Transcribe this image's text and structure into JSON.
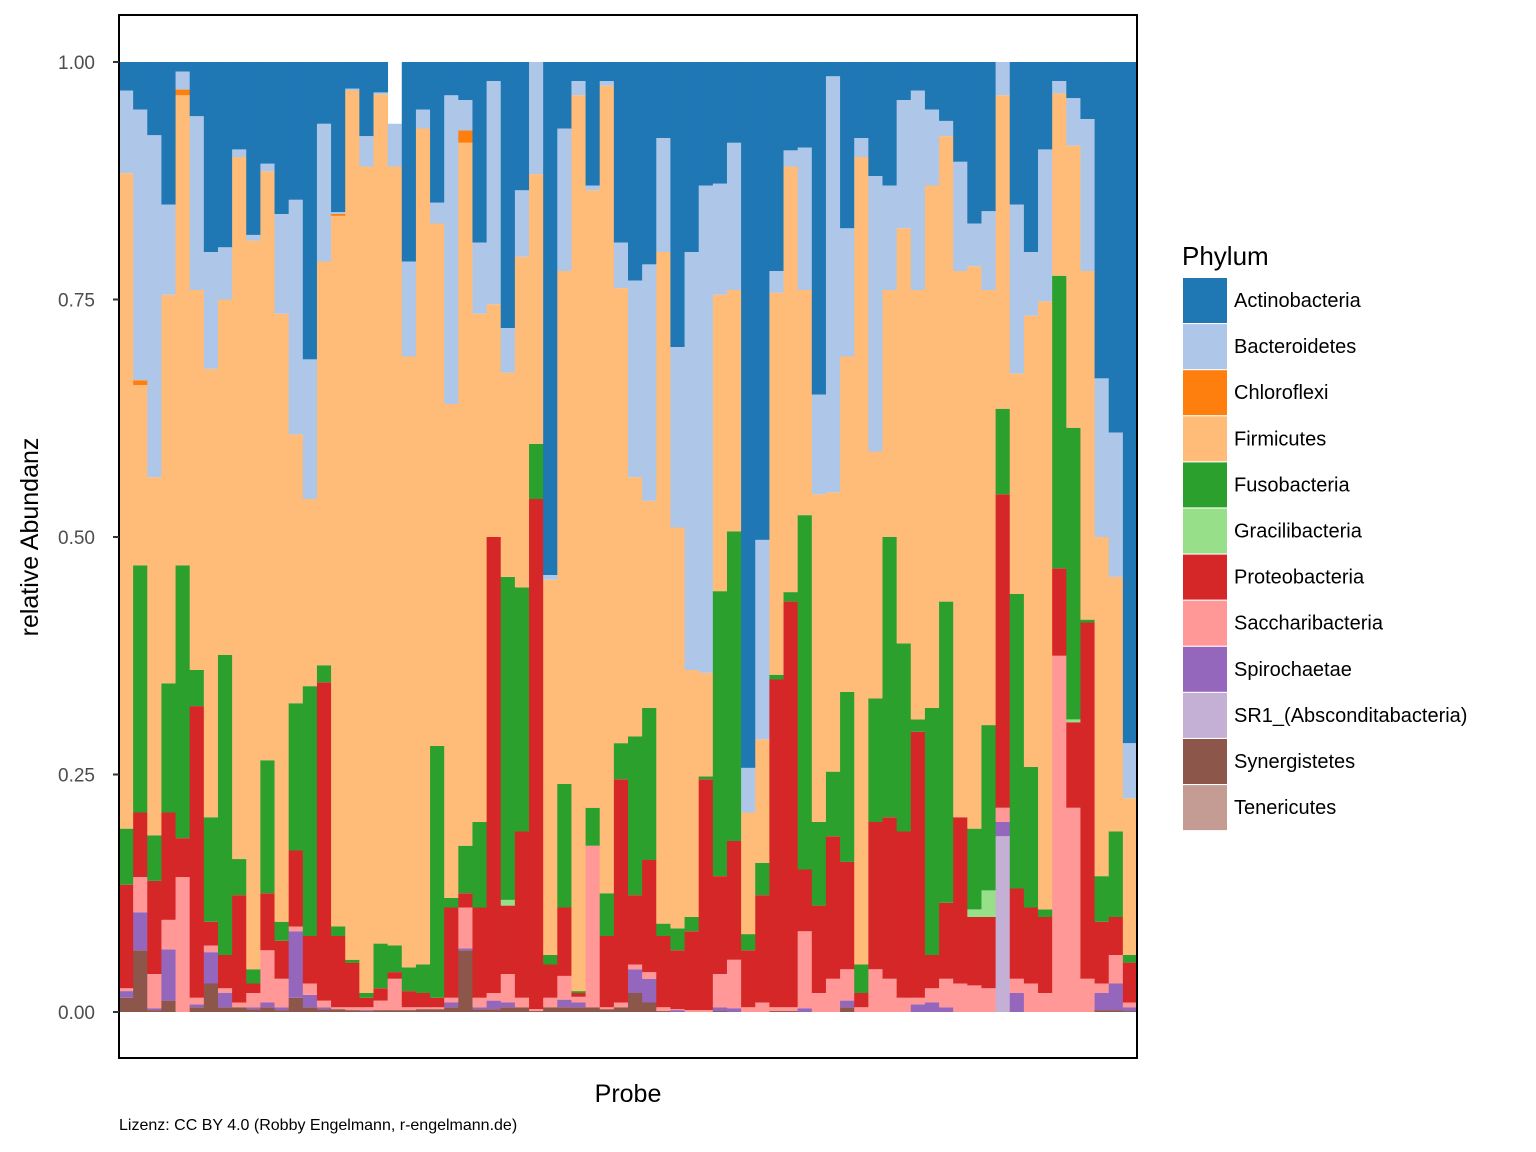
{
  "chart_data": {
    "type": "bar",
    "stacked": true,
    "normalized": true,
    "xlabel": "Probe",
    "ylabel": "relative Abundanz",
    "ylim": [
      -0.05,
      1.05
    ],
    "yticks": [
      0,
      0.25,
      0.5,
      0.75,
      1
    ],
    "ytick_labels": [
      "0.00",
      "0.25",
      "0.50",
      "0.75",
      "1.00"
    ],
    "legend": {
      "title": "Phylum",
      "placement": "right",
      "entries": [
        {
          "key": "Ac",
          "name": "Actinobacteria",
          "color": "#1f77b4"
        },
        {
          "key": "Ba",
          "name": "Bacteroidetes",
          "color": "#aec7e8"
        },
        {
          "key": "Ch",
          "name": "Chloroflexi",
          "color": "#ff7f0e"
        },
        {
          "key": "Fi",
          "name": "Firmicutes",
          "color": "#ffbb78"
        },
        {
          "key": "Fu",
          "name": "Fusobacteria",
          "color": "#2ca02c"
        },
        {
          "key": "Gr",
          "name": "Gracilibacteria",
          "color": "#98df8a"
        },
        {
          "key": "Pr",
          "name": "Proteobacteria",
          "color": "#d62728"
        },
        {
          "key": "Sa",
          "name": "Saccharibacteria",
          "color": "#ff9896"
        },
        {
          "key": "Sp",
          "name": "Spirochaetae",
          "color": "#9467bd"
        },
        {
          "key": "SR",
          "name": "SR1_(Absconditabacteria)",
          "color": "#c5b0d5"
        },
        {
          "key": "Sy",
          "name": "Synergistetes",
          "color": "#8c564b"
        },
        {
          "key": "Te",
          "name": "Tenericutes",
          "color": "#c49c94"
        }
      ]
    },
    "stack_order_bottom_to_top": [
      "Te",
      "Sy",
      "SR",
      "Sp",
      "Sa",
      "Pr",
      "Gr",
      "Fu",
      "Fi",
      "Ch",
      "Ba",
      "Ac"
    ],
    "values_are_cumulative_upper_bounds": true,
    "samples": [
      {
        "Sy": 0.015,
        "Sp": 0.022,
        "Sa": 0.025,
        "Pr": 0.134,
        "Fu": 0.193,
        "Fi": 0.883,
        "Ba": 0.97,
        "Ac": 1
      },
      {
        "Sy": 0.065,
        "Sp": 0.105,
        "Sa": 0.142,
        "Pr": 0.21,
        "Fu": 0.47,
        "Fi": 0.66,
        "Ch": 0.665,
        "Ba": 0.95,
        "Ac": 1
      },
      {
        "Sy": 0.002,
        "Sp": 0.004,
        "Sa": 0.04,
        "Pr": 0.138,
        "Fu": 0.186,
        "Fi": 0.563,
        "Ba": 0.923,
        "Ac": 1
      },
      {
        "Sy": 0.012,
        "Sp": 0.066,
        "Sa": 0.097,
        "Pr": 0.21,
        "Fu": 0.346,
        "Fi": 0.755,
        "Ba": 0.85,
        "Ac": 1
      },
      {
        "Sy": 0.0,
        "Sa": 0.142,
        "Pr": 0.183,
        "Fu": 0.47,
        "Fi": 0.965,
        "Ch": 0.971,
        "Ba": 0.99,
        "Ac": 1
      },
      {
        "Sy": 0.005,
        "Sp": 0.008,
        "Sa": 0.015,
        "Pr": 0.322,
        "Fu": 0.36,
        "Fi": 0.76,
        "Ba": 0.943,
        "Ac": 1
      },
      {
        "Sy": 0.03,
        "Sp": 0.063,
        "Sa": 0.07,
        "Pr": 0.095,
        "Fu": 0.205,
        "Fi": 0.677,
        "Ba": 0.8,
        "Ac": 1
      },
      {
        "Sy": 0.005,
        "Sp": 0.02,
        "Sa": 0.025,
        "Pr": 0.06,
        "Fu": 0.376,
        "Fi": 0.75,
        "Ba": 0.805,
        "Ac": 1
      },
      {
        "Sy": 0.005,
        "Sa": 0.01,
        "Pr": 0.123,
        "Fu": 0.161,
        "Fi": 0.9,
        "Ba": 0.908,
        "Ac": 1
      },
      {
        "Sy": 0.003,
        "Sp": 0.005,
        "Sa": 0.02,
        "Pr": 0.03,
        "Fu": 0.045,
        "Fi": 0.812,
        "Ba": 0.818,
        "Ac": 1
      },
      {
        "Sy": 0.005,
        "Sp": 0.01,
        "Sa": 0.065,
        "Pr": 0.125,
        "Fu": 0.265,
        "Fi": 0.885,
        "Ba": 0.893,
        "Ac": 1
      },
      {
        "Sy": 0.002,
        "Sp": 0.005,
        "Sa": 0.035,
        "Pr": 0.075,
        "Fu": 0.095,
        "Fi": 0.735,
        "Ba": 0.84,
        "Ac": 1
      },
      {
        "Sy": 0.015,
        "Sp": 0.085,
        "Sa": 0.09,
        "Pr": 0.17,
        "Fu": 0.325,
        "Fi": 0.608,
        "Ba": 0.855,
        "Ac": 1
      },
      {
        "Sy": 0.005,
        "Sp": 0.018,
        "Sa": 0.03,
        "Pr": 0.08,
        "Fu": 0.343,
        "Fi": 0.54,
        "Ba": 0.687,
        "Ac": 1
      },
      {
        "Sy": 0.003,
        "Sp": 0.005,
        "Sa": 0.012,
        "Pr": 0.347,
        "Fu": 0.365,
        "Fi": 0.79,
        "Ba": 0.935,
        "Ac": 1
      },
      {
        "Sy": 0.003,
        "Sa": 0.005,
        "Pr": 0.08,
        "Fu": 0.09,
        "Fi": 0.838,
        "Ch": 0.84,
        "Ba": 0.842,
        "Ac": 1
      },
      {
        "Sy": 0.002,
        "Sa": 0.005,
        "Pr": 0.052,
        "Fu": 0.055,
        "Fi": 0.97,
        "Ba": 0.972,
        "Ac": 1
      },
      {
        "Sy": 0.001,
        "Sp": 0.002,
        "Sa": 0.005,
        "Pr": 0.015,
        "Fu": 0.02,
        "Fi": 0.89,
        "Ba": 0.922,
        "Ac": 1
      },
      {
        "Sy": 0.002,
        "Sa": 0.012,
        "Pr": 0.025,
        "Fu": 0.072,
        "Fi": 0.966,
        "Ba": 0.968,
        "Ac": 1
      },
      {
        "Sy": 0.002,
        "Sa": 0.035,
        "Pr": 0.042,
        "Fu": 0.07,
        "Fi": 0.89,
        "Ba": 0.935,
        "Ac": 0.935
      },
      {
        "Sy": 0.002,
        "Sa": 0.005,
        "Pr": 0.022,
        "Fu": 0.047,
        "Fi": 0.69,
        "Ba": 0.79,
        "Ac": 1
      },
      {
        "Sy": 0.003,
        "Sa": 0.005,
        "Pr": 0.02,
        "Fu": 0.05,
        "Fi": 0.93,
        "Ba": 0.95,
        "Ac": 1
      },
      {
        "Sy": 0.003,
        "Sa": 0.005,
        "Pr": 0.015,
        "Fu": 0.28,
        "Fi": 0.83,
        "Ba": 0.852,
        "Ac": 1
      },
      {
        "Sy": 0.005,
        "Sp": 0.01,
        "Sa": 0.015,
        "Pr": 0.11,
        "Fu": 0.12,
        "Fi": 0.64,
        "Ba": 0.965,
        "Ac": 1
      },
      {
        "Sy": 0.065,
        "Sp": 0.067,
        "Sa": 0.11,
        "Pr": 0.125,
        "Fu": 0.175,
        "Fi": 0.915,
        "Ch": 0.928,
        "Ba": 0.96,
        "Ac": 1
      },
      {
        "Sy": 0.003,
        "Sp": 0.005,
        "Sa": 0.015,
        "Pr": 0.11,
        "Fu": 0.2,
        "Fi": 0.735,
        "Ba": 0.81,
        "Ac": 1
      },
      {
        "Sy": 0.003,
        "Sp": 0.012,
        "Sa": 0.02,
        "Pr": 0.5,
        "Fu": 0.5,
        "Fi": 0.745,
        "Ba": 0.98,
        "Ac": 1
      },
      {
        "Sy": 0.005,
        "Sp": 0.01,
        "Sa": 0.04,
        "Pr": 0.112,
        "Gr": 0.118,
        "Fu": 0.458,
        "Fi": 0.673,
        "Ba": 0.72,
        "Ac": 1
      },
      {
        "Sy": 0.005,
        "Sa": 0.015,
        "Pr": 0.19,
        "Fu": 0.447,
        "Fi": 0.795,
        "Ba": 0.865,
        "Ac": 1
      },
      {
        "Sy": 0.001,
        "Sa": 0.003,
        "Pr": 0.54,
        "Fu": 0.598,
        "Fi": 0.882,
        "Ba": 1.0,
        "Ac": 1
      },
      {
        "Sy": 0.005,
        "Sa": 0.015,
        "Pr": 0.05,
        "Fu": 0.06,
        "Fi": 0.455,
        "Ba": 0.46,
        "Ac": 1
      },
      {
        "Sy": 0.005,
        "Sp": 0.013,
        "Sa": 0.038,
        "Pr": 0.11,
        "Fu": 0.24,
        "Fi": 0.78,
        "Ba": 0.93,
        "Ac": 1
      },
      {
        "Sy": 0.005,
        "Sp": 0.01,
        "Sa": 0.016,
        "Pr": 0.02,
        "Fu": 0.022,
        "Fi": 0.965,
        "Ba": 0.98,
        "Ac": 1
      },
      {
        "Sy": 0.005,
        "Sa": 0.175,
        "Pr": 0.175,
        "Fu": 0.215,
        "Fi": 0.865,
        "Ba": 0.87,
        "Ac": 1
      },
      {
        "Sy": 0.003,
        "Sa": 0.005,
        "Pr": 0.08,
        "Fu": 0.125,
        "Fi": 0.975,
        "Ba": 0.98,
        "Ac": 1
      },
      {
        "Sy": 0.005,
        "Sa": 0.01,
        "Pr": 0.245,
        "Fu": 0.283,
        "Fi": 0.762,
        "Ba": 0.81,
        "Ac": 1
      },
      {
        "Sy": 0.02,
        "Sp": 0.045,
        "Sa": 0.05,
        "Pr": 0.123,
        "Fu": 0.29,
        "Fi": 0.563,
        "Ba": 0.77,
        "Ac": 1
      },
      {
        "Sy": 0.01,
        "Sp": 0.035,
        "Sa": 0.042,
        "Pr": 0.16,
        "Fu": 0.32,
        "Fi": 0.538,
        "Ba": 0.787,
        "Ac": 1
      },
      {
        "Sy": 0.001,
        "Sa": 0.005,
        "Pr": 0.08,
        "Fu": 0.093,
        "Fi": 0.8,
        "Ba": 0.92,
        "Ac": 1
      },
      {
        "Sp": 0.002,
        "Sa": 0.003,
        "Pr": 0.065,
        "Fu": 0.088,
        "Fi": 0.51,
        "Ba": 0.7,
        "Ac": 1
      },
      {
        "Sa": 0.002,
        "Pr": 0.085,
        "Fu": 0.1,
        "Fi": 0.36,
        "Ba": 0.8,
        "Ac": 1
      },
      {
        "Sa": 0.002,
        "Pr": 0.245,
        "Fu": 0.248,
        "Fi": 0.357,
        "Ba": 0.87,
        "Ac": 1
      },
      {
        "Sy": 0.001,
        "Sp": 0.005,
        "Sa": 0.04,
        "Pr": 0.143,
        "Fu": 0.443,
        "Fi": 0.755,
        "Ba": 0.872,
        "Ac": 1
      },
      {
        "Sp": 0.004,
        "Sa": 0.055,
        "Pr": 0.18,
        "Fu": 0.506,
        "Fi": 0.76,
        "Ba": 0.915,
        "Ac": 1
      },
      {
        "Sa": 0.005,
        "Pr": 0.065,
        "Fu": 0.082,
        "Fi": 0.21,
        "Ba": 0.257,
        "Ac": 1
      },
      {
        "Sa": 0.01,
        "Pr": 0.123,
        "Fu": 0.157,
        "Fi": 0.287,
        "Ba": 0.497,
        "Ac": 1
      },
      {
        "Sy": 0.001,
        "Sa": 0.005,
        "Pr": 0.35,
        "Fu": 0.355,
        "Fi": 0.757,
        "Ba": 0.78,
        "Ac": 1
      },
      {
        "Sy": 0.001,
        "Sa": 0.005,
        "Pr": 0.432,
        "Fu": 0.442,
        "Fi": 0.89,
        "Ba": 0.907,
        "Ac": 1
      },
      {
        "Sp": 0.004,
        "Sa": 0.085,
        "Pr": 0.15,
        "Fu": 0.523,
        "Fi": 0.76,
        "Ba": 0.91,
        "Ac": 1
      },
      {
        "Sa": 0.02,
        "Pr": 0.112,
        "Fu": 0.2,
        "Fi": 0.545,
        "Ba": 0.65,
        "Ac": 1
      },
      {
        "Sa": 0.035,
        "Pr": 0.185,
        "Fu": 0.253,
        "Fi": 0.547,
        "Ba": 0.985,
        "Ac": 1
      },
      {
        "Sy": 0.005,
        "Sp": 0.012,
        "Sa": 0.045,
        "Pr": 0.158,
        "Fu": 0.337,
        "Fi": 0.69,
        "Ba": 0.825,
        "Ac": 1
      },
      {
        "Sa": 0.005,
        "Pr": 0.02,
        "Fu": 0.05,
        "Fi": 0.9,
        "Ba": 0.92,
        "Ac": 1
      },
      {
        "Sa": 0.045,
        "Pr": 0.2,
        "Fu": 0.33,
        "Fi": 0.59,
        "Ba": 0.88,
        "Ac": 1
      },
      {
        "Sa": 0.035,
        "Pr": 0.205,
        "Fu": 0.5,
        "Fi": 0.76,
        "Ba": 0.87,
        "Ac": 1
      },
      {
        "Sa": 0.015,
        "Pr": 0.19,
        "Fu": 0.388,
        "Fi": 0.825,
        "Ba": 0.96,
        "Ac": 1
      },
      {
        "Sp": 0.008,
        "Sa": 0.015,
        "Pr": 0.295,
        "Fu": 0.308,
        "Fi": 0.76,
        "Ba": 0.97,
        "Ac": 1
      },
      {
        "Sp": 0.01,
        "Sa": 0.025,
        "Pr": 0.06,
        "Fu": 0.32,
        "Fi": 0.87,
        "Ba": 0.95,
        "Ac": 1
      },
      {
        "Sp": 0.005,
        "Sa": 0.035,
        "Pr": 0.115,
        "Fu": 0.432,
        "Fi": 0.922,
        "Ba": 0.938,
        "Ac": 1
      },
      {
        "Sa": 0.03,
        "Pr": 0.205,
        "Fu": 0.205,
        "Fi": 0.78,
        "Ba": 0.895,
        "Ac": 1
      },
      {
        "Sa": 0.028,
        "Pr": 0.1,
        "Gr": 0.108,
        "Fu": 0.193,
        "Fi": 0.785,
        "Ba": 0.83,
        "Ac": 1
      },
      {
        "Sa": 0.025,
        "Pr": 0.1,
        "Gr": 0.128,
        "Fu": 0.302,
        "Fi": 0.76,
        "Ba": 0.843,
        "Ac": 1
      },
      {
        "SR": 0.185,
        "Sp": 0.2,
        "Sa": 0.215,
        "Pr": 0.545,
        "Fu": 0.635,
        "Fi": 0.965,
        "Ba": 1.0,
        "Ac": 1
      },
      {
        "Sp": 0.02,
        "Sa": 0.035,
        "Pr": 0.13,
        "Fu": 0.44,
        "Fi": 0.672,
        "Ba": 0.85,
        "Ac": 1
      },
      {
        "Sa": 0.03,
        "Pr": 0.11,
        "Fu": 0.258,
        "Fi": 0.733,
        "Ba": 0.8,
        "Ac": 1
      },
      {
        "Sa": 0.02,
        "Pr": 0.1,
        "Fu": 0.108,
        "Fi": 0.748,
        "Ba": 0.908,
        "Ac": 1
      },
      {
        "Sa": 0.375,
        "Pr": 0.467,
        "Fu": 0.775,
        "Fi": 0.967,
        "Ba": 0.98,
        "Ac": 1
      },
      {
        "Sa": 0.215,
        "Pr": 0.305,
        "Gr": 0.308,
        "Fu": 0.615,
        "Fi": 0.912,
        "Ba": 0.962,
        "Ac": 1
      },
      {
        "Sa": 0.035,
        "Pr": 0.41,
        "Fu": 0.413,
        "Fi": 0.78,
        "Ba": 0.94,
        "Ac": 1
      },
      {
        "Sy": 0.002,
        "Sp": 0.02,
        "Sa": 0.03,
        "Pr": 0.095,
        "Fu": 0.143,
        "Fi": 0.5,
        "Ba": 0.667,
        "Ac": 1
      },
      {
        "Sy": 0.002,
        "Sp": 0.03,
        "Sa": 0.06,
        "Pr": 0.1,
        "Fu": 0.19,
        "Fi": 0.458,
        "Ba": 0.61,
        "Ac": 1
      },
      {
        "Sy": 0.001,
        "Sp": 0.005,
        "Sa": 0.01,
        "Pr": 0.052,
        "Fu": 0.06,
        "Fi": 0.225,
        "Ba": 0.283,
        "Ac": 1
      }
    ]
  },
  "caption": "Lizenz: CC BY 4.0 (Robby Engelmann, r-engelmann.de)"
}
